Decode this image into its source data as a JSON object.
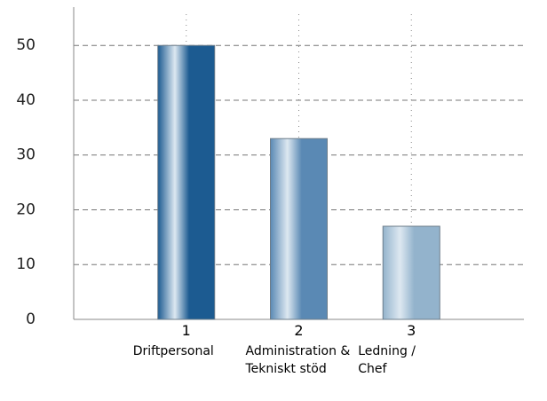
{
  "chart_data": {
    "type": "bar",
    "categories": [
      "1",
      "2",
      "3"
    ],
    "category_names": [
      "Driftpersonal",
      "Administration & Tekniskt stöd",
      "Ledning / Chef"
    ],
    "values": [
      50,
      33,
      17
    ],
    "colors": [
      "#1c5b91",
      "#5a89b4",
      "#93b3cc"
    ],
    "ylim": [
      0,
      57
    ],
    "yticks": [
      0,
      10,
      20,
      30,
      40,
      50
    ],
    "grid": true
  }
}
